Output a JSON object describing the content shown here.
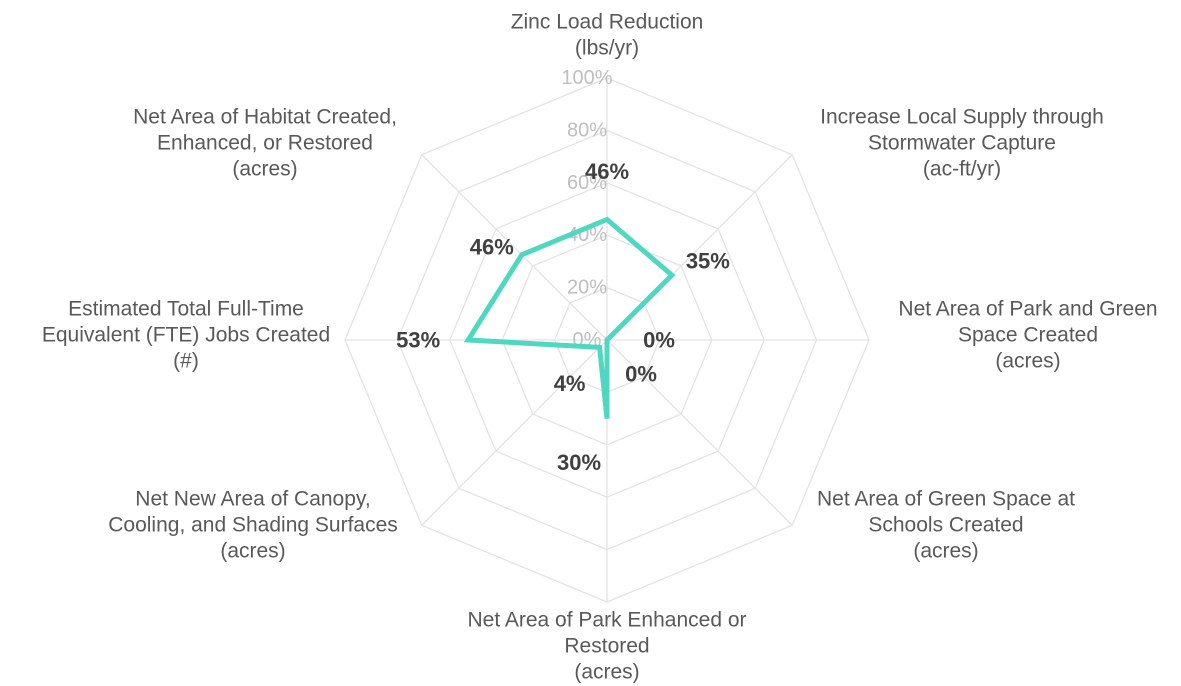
{
  "chart_data": {
    "type": "radar",
    "title": "",
    "categories": [
      [
        "Zinc Load Reduction",
        "(lbs/yr)"
      ],
      [
        "Increase Local Supply through",
        "Stormwater Capture",
        "(ac-ft/yr)"
      ],
      [
        "Net Area of Park and Green",
        "Space Created",
        "(acres)"
      ],
      [
        "Net Area of Green Space at",
        "Schools Created",
        "(acres)"
      ],
      [
        "Net Area of Park Enhanced or",
        "Restored",
        "(acres)"
      ],
      [
        "Net New Area of Canopy,",
        "Cooling, and Shading Surfaces",
        "(acres)"
      ],
      [
        "Estimated Total Full-Time",
        "Equivalent (FTE) Jobs Created",
        "(#)"
      ],
      [
        "Net Area of Habitat Created,",
        "Enhanced, or Restored",
        "(acres)"
      ]
    ],
    "values": [
      46,
      35,
      0,
      0,
      30,
      4,
      53,
      46
    ],
    "value_labels": [
      "46%",
      "35%",
      "0%",
      "0%",
      "30%",
      "4%",
      "53%",
      "46%"
    ],
    "rlim": [
      0,
      100
    ],
    "ticks": [
      0,
      20,
      40,
      60,
      80,
      100
    ],
    "tick_labels": [
      "0%",
      "20%",
      "40%",
      "60%",
      "80%",
      "100%"
    ],
    "series_color": "#4fd8bf",
    "grid_color": "#e3e3e3",
    "grid": true,
    "legend": "none"
  }
}
